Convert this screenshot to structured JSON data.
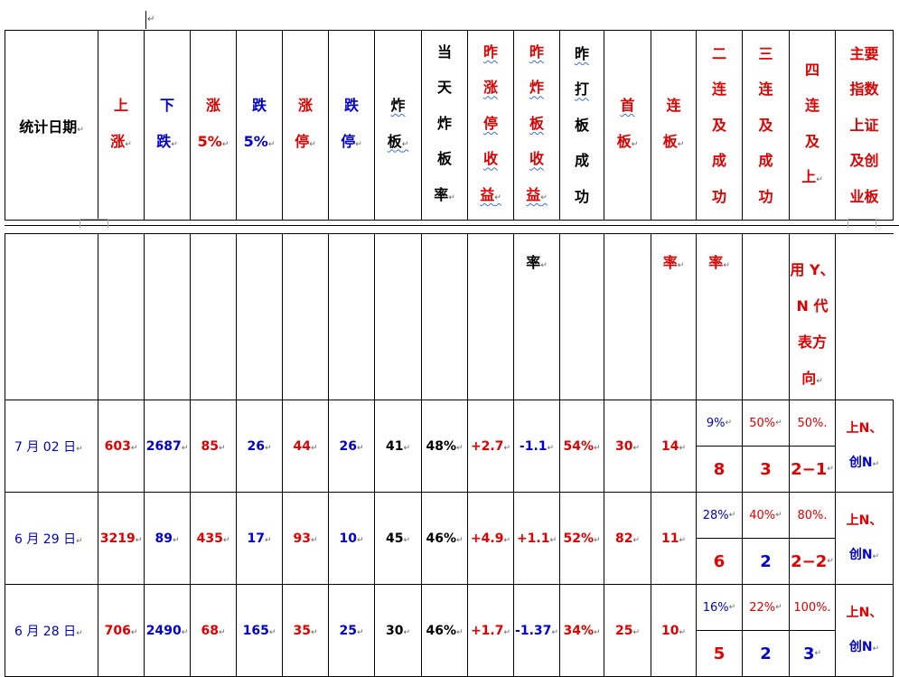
{
  "header": {
    "date_label": "统计日期",
    "columns": [
      {
        "key": "up",
        "chars": [
          "上",
          "涨"
        ],
        "color": "red"
      },
      {
        "key": "down",
        "chars": [
          "下",
          "跌"
        ],
        "color": "blue"
      },
      {
        "key": "up5",
        "chars": [
          "涨",
          "5%"
        ],
        "color": "red"
      },
      {
        "key": "down5",
        "chars": [
          "跌",
          "5%"
        ],
        "color": "blue"
      },
      {
        "key": "limit_up",
        "chars": [
          "涨",
          "停"
        ],
        "color": "red"
      },
      {
        "key": "limit_down",
        "chars": [
          "跌",
          "停"
        ],
        "color": "blue"
      },
      {
        "key": "break",
        "chars": [
          "炸",
          "板"
        ],
        "color": "black"
      },
      {
        "key": "break_rate",
        "chars": [
          "当",
          "天",
          "炸",
          "板",
          "率"
        ],
        "color": "black"
      },
      {
        "key": "yest_limit_ret",
        "chars": [
          "昨",
          "涨",
          "停",
          "收",
          "益"
        ],
        "color": "red"
      },
      {
        "key": "yest_break_ret",
        "chars": [
          "昨",
          "炸",
          "板",
          "收",
          "益"
        ],
        "color": "red"
      },
      {
        "key": "yest_reseal",
        "chars": [
          "昨",
          "打",
          "板",
          "成",
          "功"
        ],
        "color": "black",
        "cont": "率"
      },
      {
        "key": "first_board",
        "chars": [
          "首",
          "板"
        ],
        "color": "red"
      },
      {
        "key": "consecutive",
        "chars": [
          "连",
          "板"
        ],
        "color": "red"
      },
      {
        "key": "two_boards",
        "chars": [
          "二",
          "连",
          "及",
          "成",
          "功"
        ],
        "color": "red",
        "cont": "率"
      },
      {
        "key": "three_boards",
        "chars": [
          "三",
          "连",
          "及",
          "成",
          "功"
        ],
        "color": "red",
        "cont": "率"
      },
      {
        "key": "four_boards",
        "chars": [
          "四",
          "连",
          "及",
          "上"
        ],
        "color": "red"
      },
      {
        "key": "index",
        "chars": [
          "主要",
          "指数",
          "上证",
          "及创",
          "业板"
        ],
        "color": "red",
        "cont_lines": [
          "用 Y、",
          "N 代",
          "表方",
          "向"
        ]
      }
    ]
  },
  "rows": [
    {
      "date": "7 月 02 日",
      "up": "603",
      "down": "2687",
      "up5": "85",
      "down5": "26",
      "limit_up": "44",
      "limit_down": "26",
      "break": "41",
      "break_rate": "48%",
      "yest_limit_ret": "+2.7",
      "yest_break_ret": "-1.1",
      "yest_reseal": "54%",
      "first_board": "30",
      "consecutive": "14",
      "two": {
        "rate": "9%",
        "count": "8"
      },
      "three": {
        "rate": "50%",
        "count": "3"
      },
      "four": {
        "rate": "50%.",
        "count": "2−1"
      },
      "index": [
        "上N、",
        "创N"
      ]
    },
    {
      "date": "6 月 29 日",
      "up": "3219",
      "down": "89",
      "up5": "435",
      "down5": "17",
      "limit_up": "93",
      "limit_down": "10",
      "break": "45",
      "break_rate": "46%",
      "yest_limit_ret": "+4.9",
      "yest_break_ret": "+1.1",
      "yest_reseal": "52%",
      "first_board": "82",
      "consecutive": "11",
      "two": {
        "rate": "28%",
        "count": "6"
      },
      "three": {
        "rate": "40%",
        "count": "2"
      },
      "four": {
        "rate": "80%.",
        "count": "2−2"
      },
      "index": [
        "上N、",
        "创N"
      ]
    },
    {
      "date": "6 月 28 日",
      "up": "706",
      "down": "2490",
      "up5": "68",
      "down5": "165",
      "limit_up": "35",
      "limit_down": "25",
      "break": "30",
      "break_rate": "46%",
      "yest_limit_ret": "+1.7",
      "yest_break_ret": "-1.37",
      "yest_reseal": "34%",
      "first_board": "25",
      "consecutive": "10",
      "two": {
        "rate": "16%",
        "count": "5"
      },
      "three": {
        "rate": "22%",
        "count": "2"
      },
      "four": {
        "rate": "100%.",
        "count": "3"
      },
      "index": [
        "上N、",
        "创N"
      ]
    }
  ],
  "colors": {
    "red": "#e00000",
    "blue": "#0000cc",
    "black": "#000000"
  }
}
